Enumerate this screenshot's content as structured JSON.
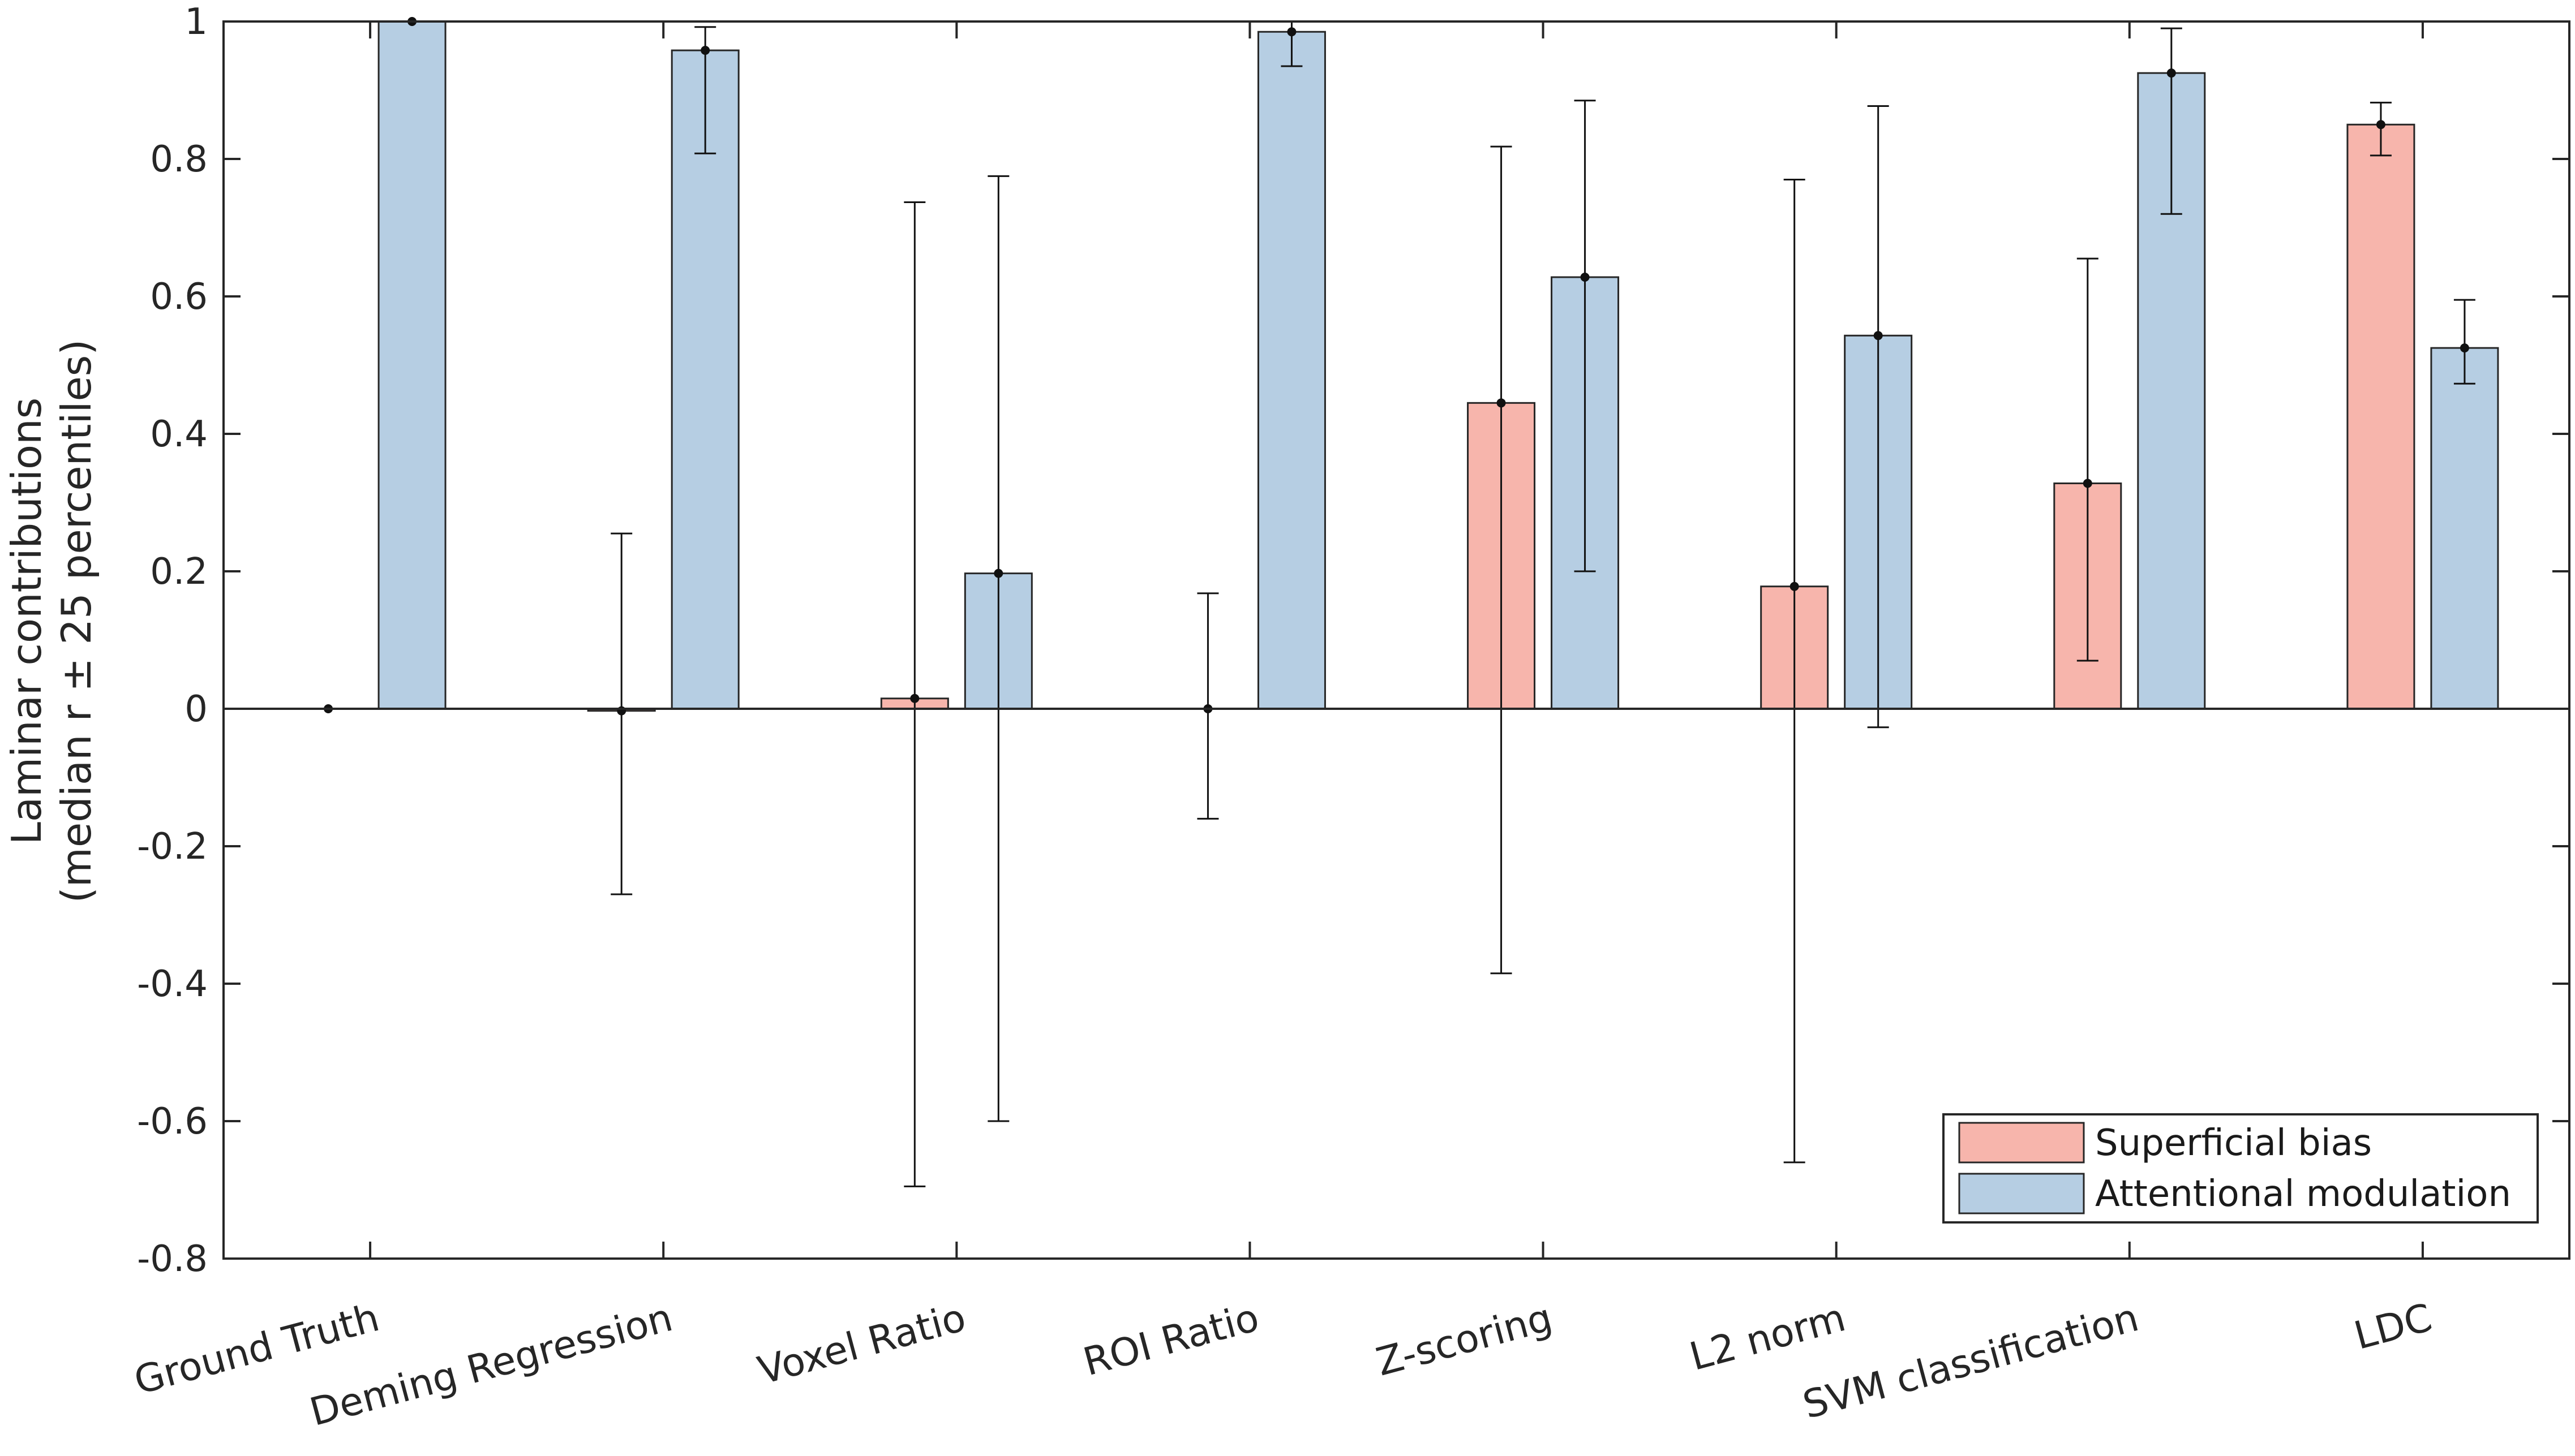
{
  "chart_data": {
    "type": "bar",
    "title": "",
    "xlabel": "",
    "ylabel_line1": "Laminar contributions",
    "ylabel_line2": "(median r ± 25 percentiles)",
    "ylim": [
      -0.8,
      1
    ],
    "yticks": [
      -0.8,
      -0.6,
      -0.4,
      -0.2,
      0,
      0.2,
      0.4,
      0.6,
      0.8,
      1
    ],
    "ytick_labels": [
      "-0.8",
      "-0.6",
      "-0.4",
      "-0.2",
      "0",
      "0.2",
      "0.4",
      "0.6",
      "0.8",
      "1"
    ],
    "grid": false,
    "legend_position": "bottom-right",
    "categories": [
      "Ground Truth",
      "Deming Regression",
      "Voxel Ratio",
      "ROI Ratio",
      "Z-scoring",
      "L2 norm",
      "SVM classification",
      "LDC"
    ],
    "series": [
      {
        "name": "Superficial bias",
        "color": "#f7b5ac",
        "values": [
          0.0,
          -0.003,
          0.015,
          0.0,
          0.445,
          0.178,
          0.328,
          0.85
        ],
        "err_low": [
          0.0,
          -0.27,
          -0.695,
          -0.16,
          -0.385,
          -0.66,
          0.07,
          0.805
        ],
        "err_high": [
          0.0,
          0.255,
          0.737,
          0.168,
          0.818,
          0.77,
          0.655,
          0.882
        ]
      },
      {
        "name": "Attentional modulation",
        "color": "#b6cee3",
        "values": [
          1.0,
          0.958,
          0.197,
          0.985,
          0.628,
          0.543,
          0.925,
          0.525
        ],
        "err_low": [
          1.0,
          0.808,
          -0.6,
          0.935,
          0.2,
          -0.027,
          0.72,
          0.473
        ],
        "err_high": [
          1.0,
          0.992,
          0.775,
          1.0,
          0.885,
          0.877,
          0.99,
          0.595
        ]
      }
    ]
  }
}
